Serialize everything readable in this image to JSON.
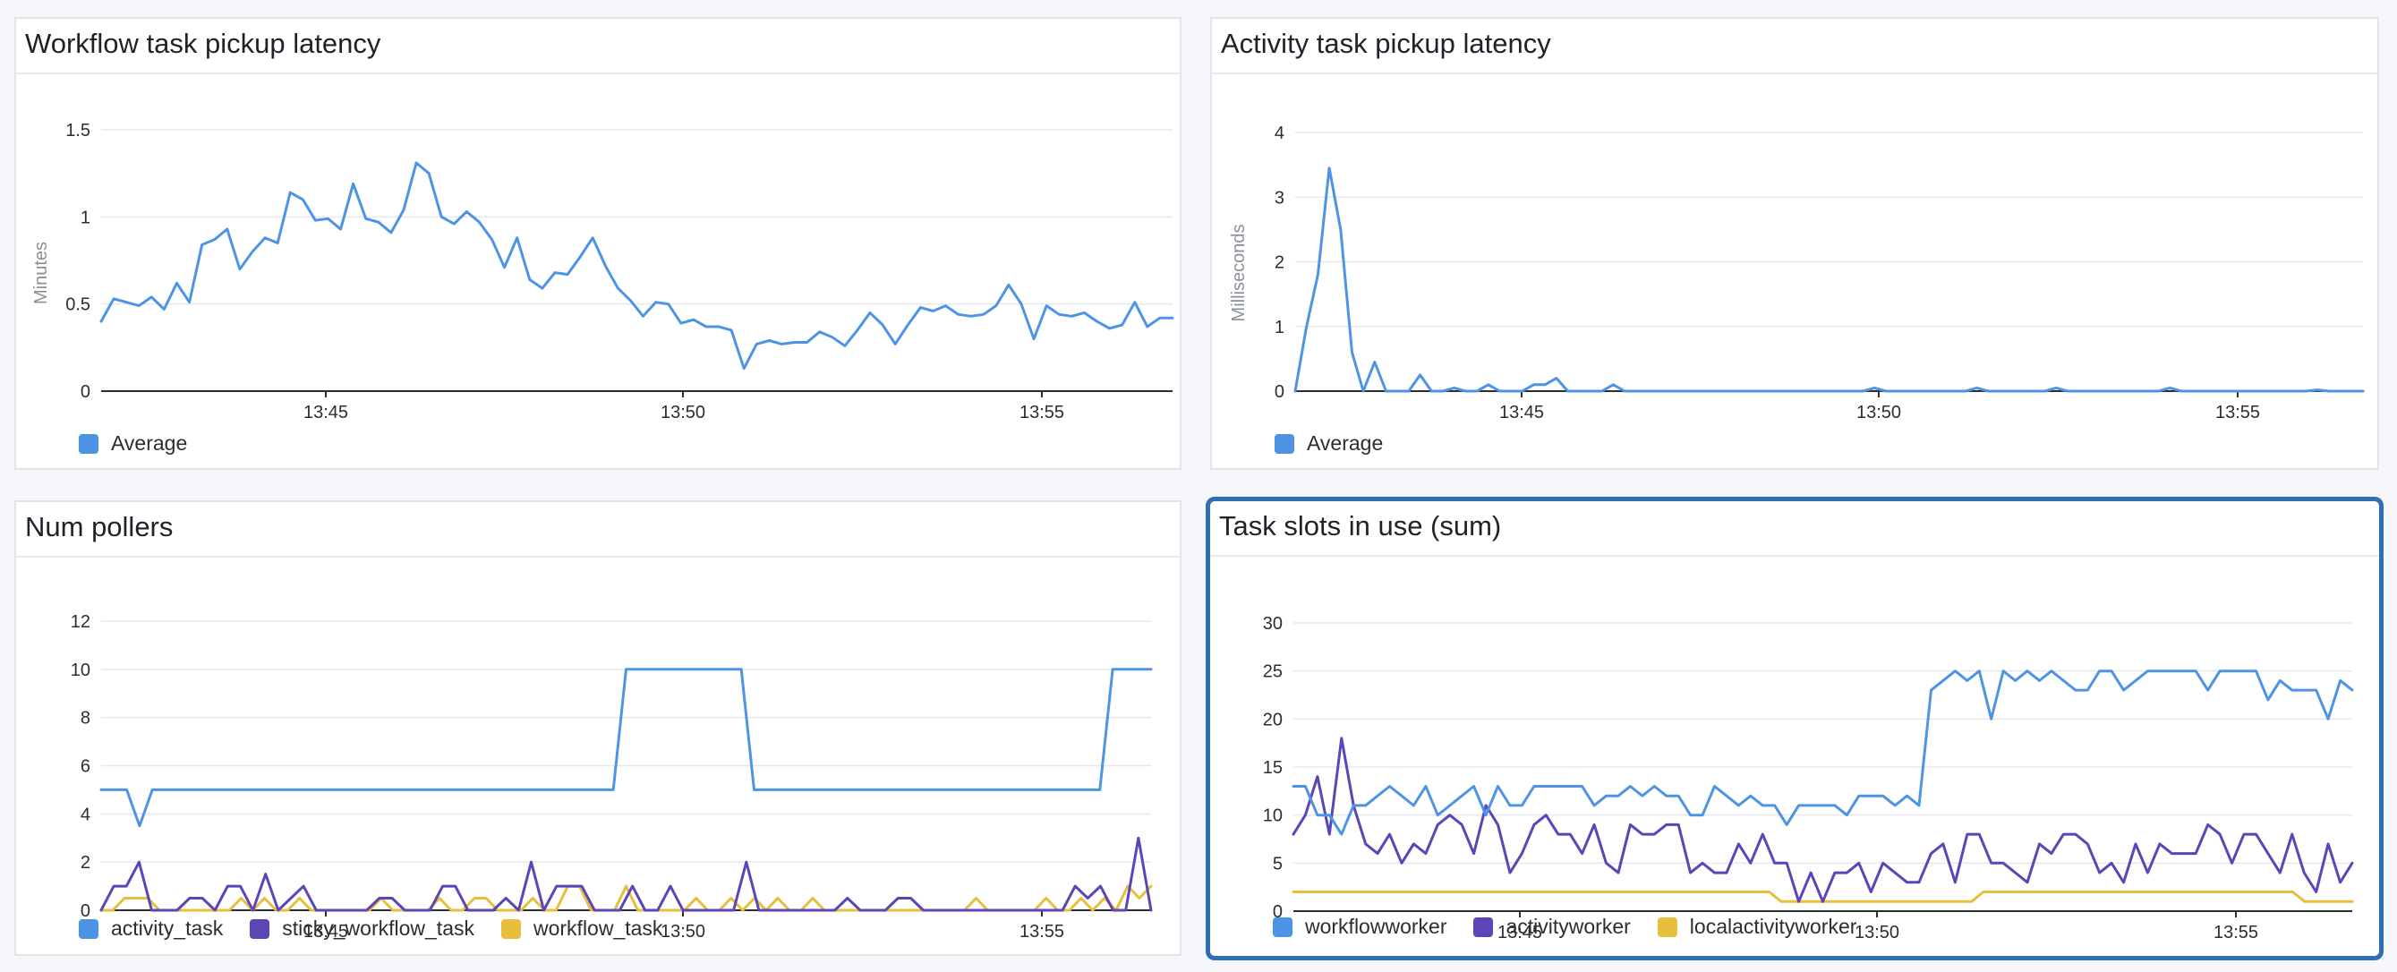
{
  "colors": {
    "blue": "#4e94e4",
    "purple": "#5b45b7",
    "yellow": "#e7bf3c",
    "grid": "#e6e8eb",
    "axis": "#2a2e33",
    "selected_border": "#2f6fb4"
  },
  "chart_data": [
    {
      "title": "Workflow task pickup latency",
      "type": "line",
      "ylabel": "Minutes",
      "xlabel": "",
      "x_ticks": [
        "13:45",
        "13:50",
        "13:55"
      ],
      "y_ticks": [
        "0",
        "0.5",
        "1",
        "1.5"
      ],
      "ylim": [
        0,
        1.5
      ],
      "grid": true,
      "legend_position": "bottom-left",
      "series": [
        {
          "name": "Average",
          "color": "#4e94e4",
          "values": [
            0.4,
            0.53,
            0.51,
            0.49,
            0.54,
            0.47,
            0.62,
            0.51,
            0.84,
            0.87,
            0.93,
            0.7,
            0.8,
            0.88,
            0.85,
            1.14,
            1.1,
            0.98,
            0.99,
            0.93,
            1.19,
            0.99,
            0.97,
            0.91,
            1.04,
            1.31,
            1.25,
            1.0,
            0.96,
            1.03,
            0.97,
            0.87,
            0.71,
            0.88,
            0.64,
            0.59,
            0.68,
            0.67,
            0.77,
            0.88,
            0.72,
            0.59,
            0.52,
            0.43,
            0.51,
            0.5,
            0.39,
            0.41,
            0.37,
            0.37,
            0.35,
            0.13,
            0.27,
            0.29,
            0.27,
            0.28,
            0.28,
            0.34,
            0.31,
            0.26,
            0.35,
            0.45,
            0.38,
            0.27,
            0.38,
            0.48,
            0.46,
            0.49,
            0.44,
            0.43,
            0.44,
            0.49,
            0.61,
            0.5,
            0.3,
            0.49,
            0.44,
            0.43,
            0.45,
            0.4,
            0.36,
            0.38,
            0.51,
            0.37,
            0.42,
            0.42
          ]
        }
      ]
    },
    {
      "title": "Activity task pickup latency",
      "type": "line",
      "ylabel": "Milliseconds",
      "xlabel": "",
      "x_ticks": [
        "13:45",
        "13:50",
        "13:55"
      ],
      "y_ticks": [
        "0",
        "1",
        "2",
        "3",
        "4"
      ],
      "ylim": [
        0,
        4
      ],
      "grid": true,
      "legend_position": "bottom-left",
      "series": [
        {
          "name": "Average",
          "color": "#4e94e4",
          "values": [
            0,
            1,
            1.8,
            3.45,
            2.5,
            0.6,
            0,
            0.45,
            0,
            0,
            0,
            0.25,
            0,
            0,
            0.05,
            0,
            0,
            0.1,
            0,
            0,
            0,
            0.1,
            0.1,
            0.2,
            0,
            0,
            0,
            0,
            0.1,
            0,
            0,
            0,
            0,
            0,
            0,
            0,
            0,
            0,
            0,
            0,
            0,
            0,
            0,
            0,
            0,
            0,
            0,
            0,
            0,
            0,
            0,
            0.05,
            0,
            0,
            0,
            0,
            0,
            0,
            0,
            0,
            0.05,
            0,
            0,
            0,
            0,
            0,
            0,
            0.05,
            0,
            0,
            0,
            0,
            0,
            0,
            0,
            0,
            0,
            0.05,
            0,
            0,
            0,
            0,
            0,
            0,
            0,
            0,
            0,
            0,
            0,
            0,
            0.02,
            0,
            0,
            0,
            0
          ]
        }
      ]
    },
    {
      "title": "Num pollers",
      "type": "line",
      "ylabel": "",
      "xlabel": "",
      "x_ticks": [
        "13:45",
        "13:50",
        "13:55"
      ],
      "y_ticks": [
        "0",
        "2",
        "4",
        "6",
        "8",
        "10",
        "12"
      ],
      "ylim": [
        0,
        12
      ],
      "grid": true,
      "legend_position": "bottom-left",
      "series": [
        {
          "name": "activity_task",
          "color": "#4e94e4",
          "points": [
            [
              0,
              5
            ],
            [
              1,
              5
            ],
            [
              2,
              5
            ],
            [
              3,
              3.5
            ],
            [
              4,
              5
            ],
            [
              40,
              5
            ],
            [
              41,
              10
            ],
            [
              50,
              10
            ],
            [
              51,
              5
            ],
            [
              78,
              5
            ],
            [
              79,
              10
            ],
            [
              82,
              10
            ]
          ]
        },
        {
          "name": "sticky_workflow_task",
          "color": "#5b45b7",
          "values": [
            0,
            1,
            1,
            2,
            0,
            0,
            0,
            0.5,
            0.5,
            0,
            1,
            1,
            0,
            1.5,
            0,
            0.5,
            1,
            0,
            0,
            0,
            0,
            0,
            0.5,
            0.5,
            0,
            0,
            0,
            1,
            1,
            0,
            0,
            0,
            0.5,
            0,
            2,
            0,
            1,
            1,
            1,
            0,
            0,
            0,
            1,
            0,
            0,
            1,
            0,
            0,
            0,
            0,
            0,
            2,
            0,
            0,
            0,
            0,
            0,
            0,
            0,
            0.5,
            0,
            0,
            0,
            0.5,
            0.5,
            0,
            0,
            0,
            0,
            0,
            0,
            0,
            0,
            0,
            0,
            0,
            0,
            1,
            0.5,
            1,
            0,
            0,
            3,
            0
          ]
        },
        {
          "name": "workflow_task",
          "color": "#e7bf3c",
          "values": [
            0,
            0,
            0.5,
            0.5,
            0.5,
            0,
            0,
            0,
            0,
            0,
            0,
            0,
            0.5,
            0,
            0.5,
            0,
            0,
            0.5,
            0,
            0,
            0,
            0,
            0,
            0,
            0.5,
            0,
            0,
            0,
            0,
            0.5,
            0,
            0,
            0.5,
            0.5,
            0,
            0,
            0,
            0.5,
            0,
            0,
            1,
            1,
            0,
            0,
            0,
            1,
            0,
            0,
            0,
            0,
            0,
            0.5,
            0,
            0,
            0.5,
            0,
            0.5,
            0,
            0.5,
            0,
            0,
            0.5,
            0,
            0,
            0,
            0,
            0,
            0,
            0,
            0,
            0,
            0,
            0,
            0,
            0,
            0.5,
            0,
            0,
            0,
            0,
            0,
            0.5,
            0,
            0,
            0.5,
            0,
            0.5,
            0,
            1,
            0.5,
            1
          ]
        }
      ]
    },
    {
      "title": "Task slots in use (sum)",
      "type": "line",
      "ylabel": "",
      "xlabel": "",
      "x_ticks": [
        "13:45",
        "13:50",
        "13:55"
      ],
      "y_ticks": [
        "0",
        "5",
        "10",
        "15",
        "20",
        "25",
        "30"
      ],
      "ylim": [
        0,
        30
      ],
      "grid": true,
      "legend_position": "bottom-left",
      "series": [
        {
          "name": "workflowworker",
          "color": "#4e94e4",
          "values": [
            13,
            13,
            10,
            10,
            8,
            11,
            11,
            12,
            13,
            12,
            11,
            13,
            10,
            11,
            12,
            13,
            10,
            13,
            11,
            11,
            13,
            13,
            13,
            13,
            13,
            11,
            12,
            12,
            13,
            12,
            13,
            12,
            12,
            10,
            10,
            13,
            12,
            11,
            12,
            11,
            11,
            9,
            11,
            11,
            11,
            11,
            10,
            12,
            12,
            12,
            11,
            12,
            11,
            23,
            24,
            25,
            24,
            25,
            20,
            25,
            24,
            25,
            24,
            25,
            24,
            23,
            23,
            25,
            25,
            23,
            24,
            25,
            25,
            25,
            25,
            25,
            23,
            25,
            25,
            25,
            25,
            22,
            24,
            23,
            23,
            23,
            20,
            24,
            23
          ]
        },
        {
          "name": "activityworker",
          "color": "#5b45b7",
          "values": [
            8,
            10,
            14,
            8,
            18,
            11,
            7,
            6,
            8,
            5,
            7,
            6,
            9,
            10,
            9,
            6,
            11,
            9,
            4,
            6,
            9,
            10,
            8,
            8,
            6,
            9,
            5,
            4,
            9,
            8,
            8,
            9,
            9,
            4,
            5,
            4,
            4,
            7,
            5,
            8,
            5,
            5,
            1,
            4,
            1,
            4,
            4,
            5,
            2,
            5,
            4,
            3,
            3,
            6,
            7,
            3,
            8,
            8,
            5,
            5,
            4,
            3,
            7,
            6,
            8,
            8,
            7,
            4,
            5,
            3,
            7,
            4,
            7,
            6,
            6,
            6,
            9,
            8,
            5,
            8,
            8,
            6,
            4,
            8,
            4,
            2,
            7,
            3,
            5
          ]
        },
        {
          "name": "localactivityworker",
          "color": "#e7bf3c",
          "points": [
            [
              0,
              2
            ],
            [
              40,
              2
            ],
            [
              41,
              1
            ],
            [
              57,
              1
            ],
            [
              58,
              2
            ],
            [
              84,
              2
            ],
            [
              85,
              1
            ],
            [
              89,
              1
            ]
          ]
        }
      ]
    }
  ]
}
